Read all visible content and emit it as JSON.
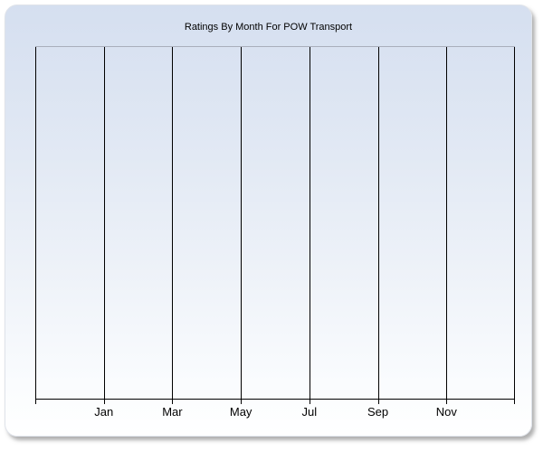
{
  "chart_data": {
    "type": "line",
    "title": "Ratings By Month For POW Transport",
    "xlabel": "",
    "ylabel": "",
    "x_tick_labels": [
      "Jan",
      "Mar",
      "May",
      "Jul",
      "Sep",
      "Nov"
    ],
    "x_gridlines": 8,
    "series": [],
    "grid": "vertical gridlines only, evenly spaced (every 2 months), labels centered under interior gridlines",
    "legend": "none",
    "plot_state": "empty - no data points or series rendered"
  },
  "colors": {
    "panel_gradient_top": "#d5dff0",
    "panel_gradient_bottom": "#ffffff",
    "gridline": "#000000",
    "plot_top_border": "#a9afbc",
    "axis_line": "#000000",
    "text": "#000000",
    "page_background": "#ffffff",
    "panel_shadow": "rgba(110,110,110,0.55)"
  }
}
